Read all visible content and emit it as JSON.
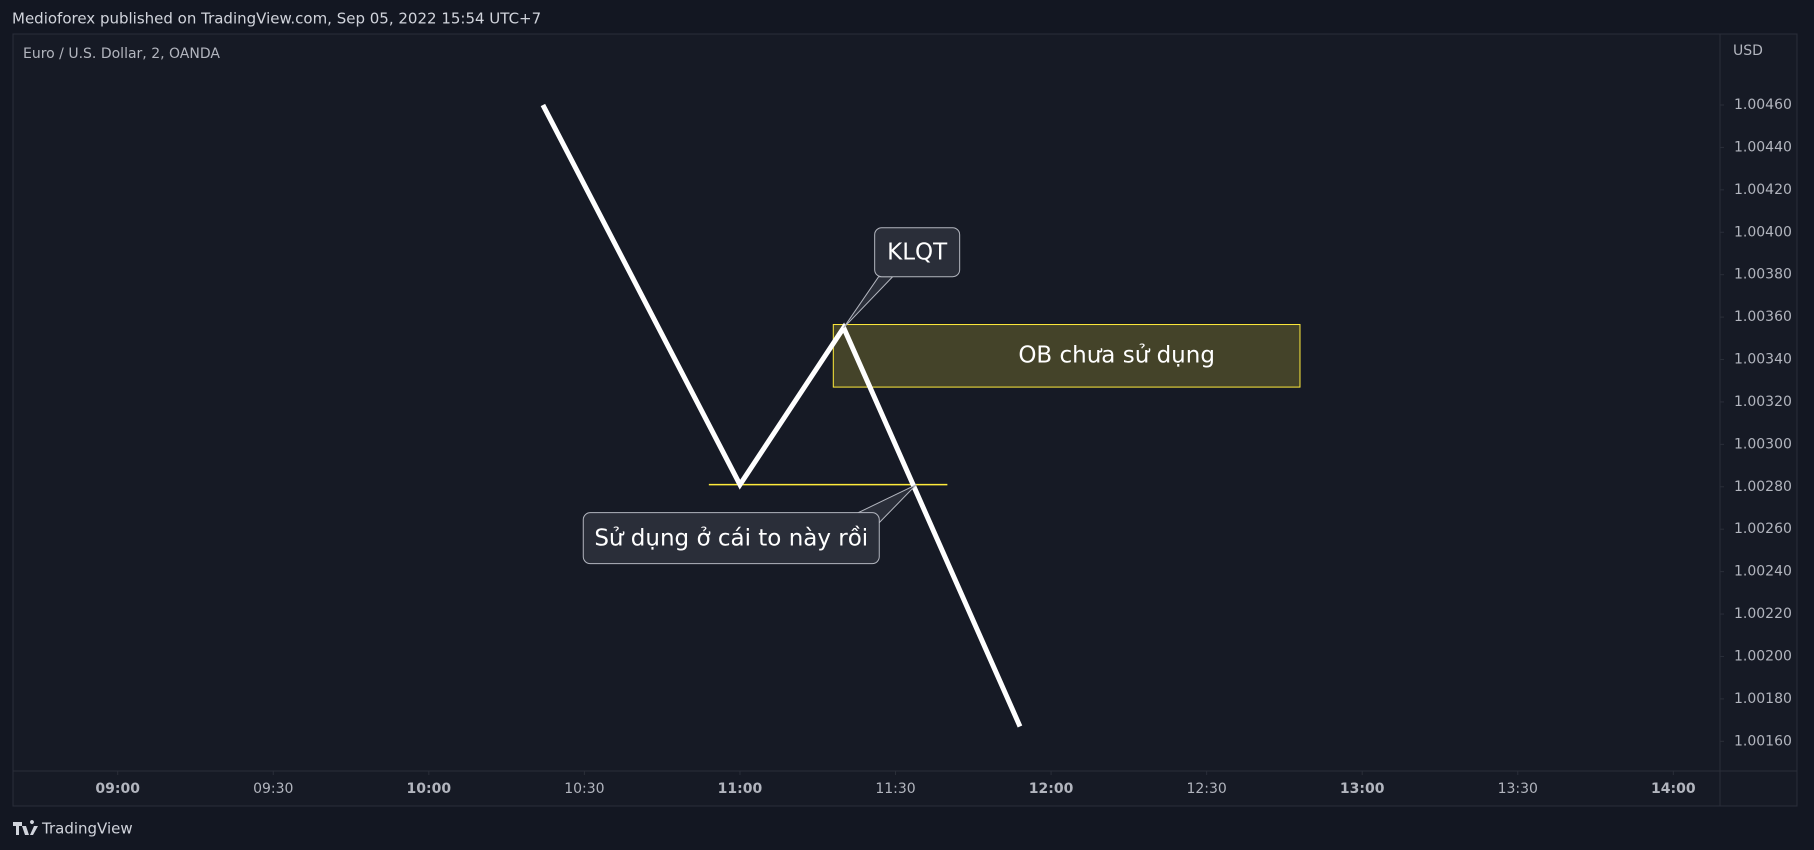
{
  "header": "Medioforex published on TradingView.com, Sep 05, 2022 15:54 UTC+7",
  "footer": "TradingView",
  "chart_data": {
    "type": "line",
    "title": "Euro / U.S. Dollar, 2, OANDA",
    "currency": "USD",
    "color": "#ffffff",
    "x": [
      82,
      120,
      140,
      174
    ],
    "values": [
      1.0046,
      1.00281,
      1.00355,
      1.00167
    ],
    "xlim": [
      -20,
      309
    ],
    "ylim": [
      1.00146,
      1.00493
    ],
    "xticks": [
      {
        "value": 0,
        "label": "09:00"
      },
      {
        "value": 30,
        "label": "09:30"
      },
      {
        "value": 60,
        "label": "10:00"
      },
      {
        "value": 90,
        "label": "10:30"
      },
      {
        "value": 120,
        "label": "11:00"
      },
      {
        "value": 150,
        "label": "11:30"
      },
      {
        "value": 180,
        "label": "12:00"
      },
      {
        "value": 210,
        "label": "12:30"
      },
      {
        "value": 240,
        "label": "13:00"
      },
      {
        "value": 270,
        "label": "13:30"
      },
      {
        "value": 300,
        "label": "14:00"
      }
    ],
    "yticks": [
      {
        "value": 1.0016,
        "label": "1.00160"
      },
      {
        "value": 1.0018,
        "label": "1.00180"
      },
      {
        "value": 1.002,
        "label": "1.00200"
      },
      {
        "value": 1.0022,
        "label": "1.00220"
      },
      {
        "value": 1.0024,
        "label": "1.00240"
      },
      {
        "value": 1.0026,
        "label": "1.00260"
      },
      {
        "value": 1.0028,
        "label": "1.00280"
      },
      {
        "value": 1.003,
        "label": "1.00300"
      },
      {
        "value": 1.0032,
        "label": "1.00320"
      },
      {
        "value": 1.0034,
        "label": "1.00340"
      },
      {
        "value": 1.0036,
        "label": "1.00360"
      },
      {
        "value": 1.0038,
        "label": "1.00380"
      },
      {
        "value": 1.004,
        "label": "1.00400"
      },
      {
        "value": 1.0042,
        "label": "1.00420"
      },
      {
        "value": 1.0044,
        "label": "1.00440"
      },
      {
        "value": 1.0046,
        "label": "1.00460"
      }
    ],
    "box": {
      "xlim": [
        138,
        228
      ],
      "ylim": [
        1.00327,
        1.003565
      ],
      "label": "OB chưa sử dụng",
      "color": "#ffeb3b"
    },
    "hline": {
      "x": [
        114,
        160
      ],
      "y": 1.00281,
      "color": "#ffeb3b"
    },
    "callouts": [
      {
        "text": "KLQT",
        "x": 140,
        "y": 1.00355
      },
      {
        "text": "Sử dụng ở cái to này rồi",
        "x": 154,
        "y": 1.00281
      }
    ]
  }
}
